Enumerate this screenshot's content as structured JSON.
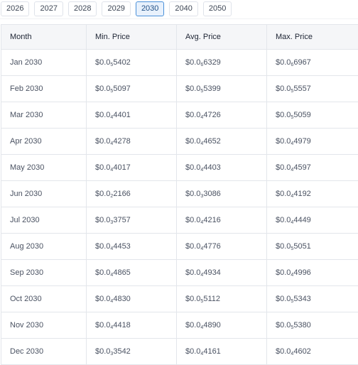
{
  "year_tabs": [
    {
      "label": "2026",
      "active": false
    },
    {
      "label": "2027",
      "active": false
    },
    {
      "label": "2028",
      "active": false
    },
    {
      "label": "2029",
      "active": false
    },
    {
      "label": "2030",
      "active": true
    },
    {
      "label": "2040",
      "active": false
    },
    {
      "label": "2050",
      "active": false
    }
  ],
  "table": {
    "headers": [
      "Month",
      "Min. Price",
      "Avg. Price",
      "Max. Price"
    ],
    "rows": [
      {
        "month": "Jan 2030",
        "min": {
          "prefix": "$0.0",
          "sub": "5",
          "digits": "5402"
        },
        "avg": {
          "prefix": "$0.0",
          "sub": "6",
          "digits": "6329"
        },
        "max": {
          "prefix": "$0.0",
          "sub": "6",
          "digits": "6967"
        }
      },
      {
        "month": "Feb 2030",
        "min": {
          "prefix": "$0.0",
          "sub": "5",
          "digits": "5097"
        },
        "avg": {
          "prefix": "$0.0",
          "sub": "5",
          "digits": "5399"
        },
        "max": {
          "prefix": "$0.0",
          "sub": "5",
          "digits": "5557"
        }
      },
      {
        "month": "Mar 2030",
        "min": {
          "prefix": "$0.0",
          "sub": "4",
          "digits": "4401"
        },
        "avg": {
          "prefix": "$0.0",
          "sub": "4",
          "digits": "4726"
        },
        "max": {
          "prefix": "$0.0",
          "sub": "5",
          "digits": "5059"
        }
      },
      {
        "month": "Apr 2030",
        "min": {
          "prefix": "$0.0",
          "sub": "4",
          "digits": "4278"
        },
        "avg": {
          "prefix": "$0.0",
          "sub": "4",
          "digits": "4652"
        },
        "max": {
          "prefix": "$0.0",
          "sub": "4",
          "digits": "4979"
        }
      },
      {
        "month": "May 2030",
        "min": {
          "prefix": "$0.0",
          "sub": "4",
          "digits": "4017"
        },
        "avg": {
          "prefix": "$0.0",
          "sub": "4",
          "digits": "4403"
        },
        "max": {
          "prefix": "$0.0",
          "sub": "4",
          "digits": "4597"
        }
      },
      {
        "month": "Jun 2030",
        "min": {
          "prefix": "$0.0",
          "sub": "2",
          "digits": "2166"
        },
        "avg": {
          "prefix": "$0.0",
          "sub": "3",
          "digits": "3086"
        },
        "max": {
          "prefix": "$0.0",
          "sub": "4",
          "digits": "4192"
        }
      },
      {
        "month": "Jul 2030",
        "min": {
          "prefix": "$0.0",
          "sub": "3",
          "digits": "3757"
        },
        "avg": {
          "prefix": "$0.0",
          "sub": "4",
          "digits": "4216"
        },
        "max": {
          "prefix": "$0.0",
          "sub": "4",
          "digits": "4449"
        }
      },
      {
        "month": "Aug 2030",
        "min": {
          "prefix": "$0.0",
          "sub": "4",
          "digits": "4453"
        },
        "avg": {
          "prefix": "$0.0",
          "sub": "4",
          "digits": "4776"
        },
        "max": {
          "prefix": "$0.0",
          "sub": "5",
          "digits": "5051"
        }
      },
      {
        "month": "Sep 2030",
        "min": {
          "prefix": "$0.0",
          "sub": "4",
          "digits": "4865"
        },
        "avg": {
          "prefix": "$0.0",
          "sub": "4",
          "digits": "4934"
        },
        "max": {
          "prefix": "$0.0",
          "sub": "4",
          "digits": "4996"
        }
      },
      {
        "month": "Oct 2030",
        "min": {
          "prefix": "$0.0",
          "sub": "4",
          "digits": "4830"
        },
        "avg": {
          "prefix": "$0.0",
          "sub": "5",
          "digits": "5112"
        },
        "max": {
          "prefix": "$0.0",
          "sub": "5",
          "digits": "5343"
        }
      },
      {
        "month": "Nov 2030",
        "min": {
          "prefix": "$0.0",
          "sub": "4",
          "digits": "4418"
        },
        "avg": {
          "prefix": "$0.0",
          "sub": "4",
          "digits": "4890"
        },
        "max": {
          "prefix": "$0.0",
          "sub": "5",
          "digits": "5380"
        }
      },
      {
        "month": "Dec 2030",
        "min": {
          "prefix": "$0.0",
          "sub": "3",
          "digits": "3542"
        },
        "avg": {
          "prefix": "$0.0",
          "sub": "4",
          "digits": "4161"
        },
        "max": {
          "prefix": "$0.0",
          "sub": "4",
          "digits": "4602"
        }
      }
    ]
  }
}
